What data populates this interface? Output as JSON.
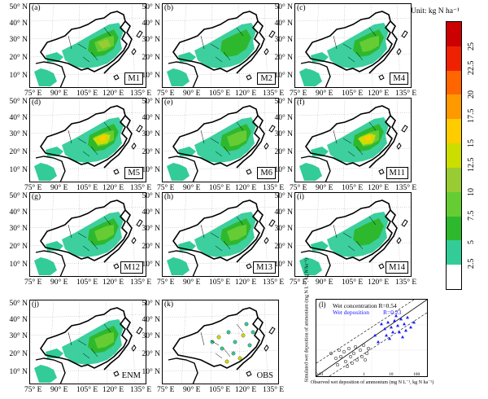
{
  "legend": {
    "unit": "Unit: kg N ha⁻¹",
    "ticks": [
      "2.5",
      "5",
      "7.5",
      "10",
      "12.5",
      "15",
      "17.5",
      "20",
      "22.5",
      "25"
    ],
    "colors": [
      "#ffffff",
      "#33cc99",
      "#2eb82e",
      "#66cc33",
      "#99cc33",
      "#ccdd00",
      "#ffcc00",
      "#ff9900",
      "#ff6600",
      "#ee2200",
      "#cc0000"
    ]
  },
  "axis": {
    "lat_ticks": [
      "50° N",
      "40° N",
      "30° N",
      "20° N",
      "10° N"
    ],
    "lon_ticks": [
      "75° E",
      "90° E",
      "105° E",
      "120° E",
      "135° E"
    ]
  },
  "panels": [
    {
      "letter": "(a)",
      "model": "M1",
      "intensity": 3
    },
    {
      "letter": "(b)",
      "model": "M2",
      "intensity": 1
    },
    {
      "letter": "(c)",
      "model": "M4",
      "intensity": 2
    },
    {
      "letter": "(d)",
      "model": "M5",
      "intensity": 4
    },
    {
      "letter": "(e)",
      "model": "M6",
      "intensity": 2
    },
    {
      "letter": "(f)",
      "model": "M11",
      "intensity": 4
    },
    {
      "letter": "(g)",
      "model": "M12",
      "intensity": 2
    },
    {
      "letter": "(h)",
      "model": "M13",
      "intensity": 2
    },
    {
      "letter": "(i)",
      "model": "M14",
      "intensity": 1
    },
    {
      "letter": "(j)",
      "model": "ENM",
      "intensity": 2
    },
    {
      "letter": "(k)",
      "model": "OBS",
      "intensity": 0
    }
  ],
  "scatter": {
    "letter": "(l)",
    "legend_wet_conc": "Wet concentration R=0.54",
    "legend_wet_dep": "Wet deposition",
    "legend_wet_dep_r": "R=0.23",
    "ylabel": "Simulated wet deposition of ammonium (mg N L⁻¹, kg N ha⁻¹)",
    "xlabel": "Observed wet deposition of ammonium (mg N L⁻¹, kg N ha⁻¹)",
    "ticks": [
      "0.01",
      "1",
      "10",
      "100"
    ],
    "dep_color": "#1a1aff"
  }
}
